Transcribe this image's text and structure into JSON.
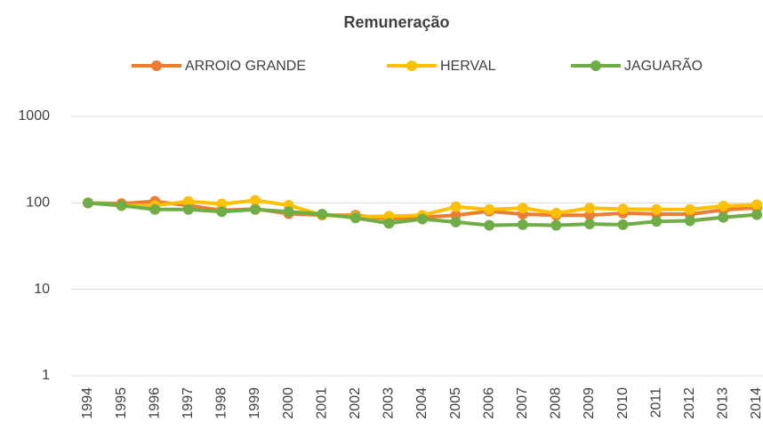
{
  "chart_data": {
    "type": "line",
    "title": "Remuneração",
    "categories": [
      "1994",
      "1995",
      "1996",
      "1997",
      "1998",
      "1999",
      "2000",
      "2001",
      "2002",
      "2003",
      "2004",
      "2005",
      "2006",
      "2007",
      "2008",
      "2009",
      "2010",
      "2011",
      "2012",
      "2013",
      "2014"
    ],
    "series": [
      {
        "name": "ARROIO GRANDE",
        "color": "#ed7d31",
        "values": [
          100,
          98,
          104,
          93,
          82,
          85,
          75,
          72,
          72,
          65,
          68,
          72,
          80,
          74,
          72,
          72,
          76,
          74,
          74,
          83,
          88
        ]
      },
      {
        "name": "HERVAL",
        "color": "#ffc000",
        "values": [
          100,
          93,
          93,
          104,
          97,
          107,
          94,
          72,
          69,
          70,
          72,
          90,
          84,
          87,
          76,
          87,
          85,
          84,
          84,
          92,
          95
        ]
      },
      {
        "name": "JAGUARÃO",
        "color": "#70ad47",
        "values": [
          100,
          93,
          84,
          84,
          79,
          84,
          79,
          74,
          67,
          58,
          65,
          60,
          55,
          56,
          55,
          57,
          56,
          61,
          62,
          68,
          73
        ]
      }
    ],
    "ylim": [
      1,
      1000
    ],
    "yticks": [
      1,
      10,
      100,
      1000
    ],
    "log_scale": true,
    "grid": true,
    "legend": "top"
  }
}
